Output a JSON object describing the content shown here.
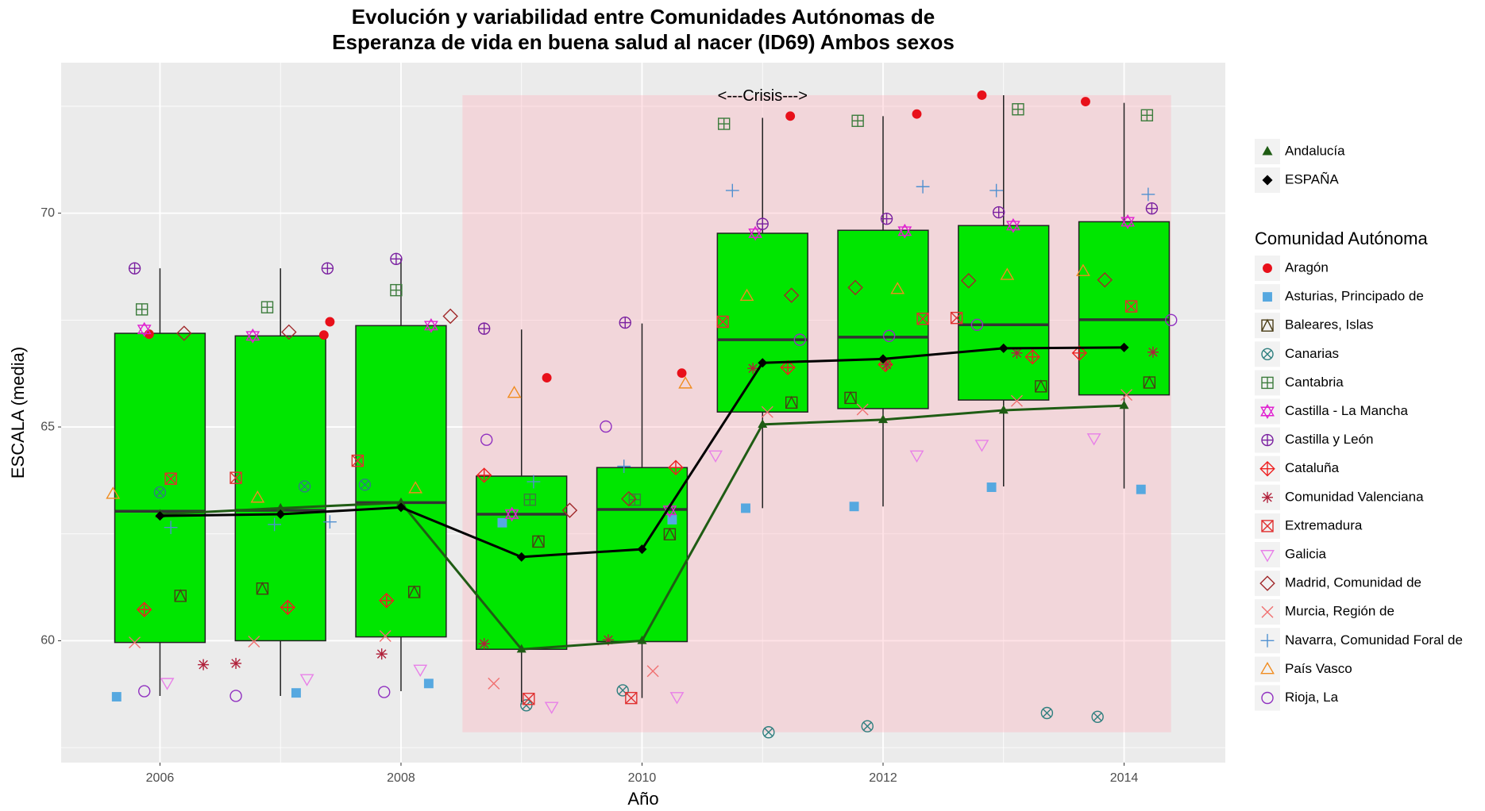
{
  "chart_data": {
    "type": "box",
    "title": [
      "Evolución y variabilidad entre Comunidades Autónomas de",
      "Esperanza de vida en buena salud al nacer (ID69) Ambos sexos"
    ],
    "x_label": "Año",
    "y_label": "ESCALA (media)",
    "xlim": [
      2005.18,
      2014.84
    ],
    "ylim": [
      57.15,
      73.52
    ],
    "xticks": [
      2006,
      2008,
      2010,
      2012,
      2014
    ],
    "yticks": [
      60,
      65,
      70
    ],
    "minor_xticks": [
      2007,
      2009,
      2011,
      2013
    ],
    "minor_yticks": [
      57.5,
      62.5,
      67.5,
      72.5
    ],
    "grid": true,
    "crisis": {
      "label": "<---Crisis--->",
      "xlim": [
        2008.51,
        2014.39
      ],
      "ylim": [
        57.86,
        72.76
      ],
      "label_x": 2011,
      "color": "#f4a6ad"
    },
    "boxes": {
      "color": "#00e600",
      "x": [
        2006,
        2007,
        2008,
        2009,
        2010,
        2011,
        2012,
        2013,
        2014
      ],
      "whisker_low": [
        58.71,
        58.71,
        58.82,
        58.51,
        58.66,
        63.1,
        63.14,
        63.61,
        63.56
      ],
      "q1": [
        59.96,
        60.0,
        60.09,
        59.8,
        59.98,
        65.35,
        65.43,
        65.63,
        65.75
      ],
      "median": [
        63.03,
        63.05,
        63.23,
        62.96,
        63.07,
        67.04,
        67.1,
        67.39,
        67.51
      ],
      "q3": [
        67.19,
        67.13,
        67.37,
        63.85,
        64.05,
        69.53,
        69.6,
        69.71,
        69.8
      ],
      "whisker_high": [
        68.71,
        68.71,
        68.93,
        67.28,
        67.42,
        72.23,
        72.27,
        72.76,
        72.58
      ]
    },
    "lines": [
      {
        "name": "Andalucía",
        "color": "#1f5c14",
        "marker": "triangle-filled",
        "x": [
          2006,
          2007,
          2008,
          2009,
          2010,
          2011,
          2012,
          2013,
          2014
        ],
        "values": [
          62.96,
          63.1,
          63.23,
          59.8,
          60.0,
          65.06,
          65.17,
          65.39,
          65.5
        ]
      },
      {
        "name": "ESPAÑA",
        "color": "#000000",
        "marker": "diamond-filled",
        "x": [
          2006,
          2007,
          2008,
          2009,
          2010,
          2011,
          2012,
          2013,
          2014
        ],
        "values": [
          62.92,
          62.96,
          63.12,
          61.96,
          62.14,
          66.5,
          66.59,
          66.84,
          66.86
        ]
      }
    ],
    "legend_title": "Comunidad Autónoma",
    "series": [
      {
        "name": "Aragón",
        "color": "#e8101a",
        "shape": "circle-filled",
        "x": [
          2005.91,
          2007.36,
          2007.41,
          2009.21,
          2010.33,
          2011.23,
          2012.28,
          2012.82,
          2013.68
        ],
        "values": [
          67.17,
          67.15,
          67.46,
          66.15,
          66.26,
          72.27,
          72.32,
          72.76,
          72.61
        ]
      },
      {
        "name": "Asturias, Principado de",
        "color": "#56a8e0",
        "shape": "square-filled",
        "x": [
          2005.64,
          2007.13,
          2008.23,
          2008.84,
          2010.25,
          2010.86,
          2011.76,
          2012.9,
          2014.14
        ],
        "values": [
          58.69,
          58.78,
          59.0,
          62.76,
          62.83,
          63.1,
          63.14,
          63.59,
          63.54
        ]
      },
      {
        "name": "Baleares, Islas",
        "color": "#4a3d16",
        "shape": "square-triangle",
        "x": [
          2006.17,
          2006.85,
          2008.11,
          2009.14,
          2010.23,
          2011.24,
          2011.73,
          2013.31,
          2014.21
        ],
        "values": [
          61.05,
          61.22,
          61.14,
          62.32,
          62.49,
          65.57,
          65.68,
          65.95,
          66.04
        ]
      },
      {
        "name": "Canarias",
        "color": "#2f7f7f",
        "shape": "circle-x",
        "x": [
          2006.0,
          2007.2,
          2007.7,
          2009.04,
          2009.84,
          2011.05,
          2011.87,
          2013.36,
          2013.78
        ],
        "values": [
          63.47,
          63.61,
          63.65,
          58.49,
          58.84,
          57.86,
          58.0,
          58.31,
          58.22
        ]
      },
      {
        "name": "Cantabria",
        "color": "#3c7c3c",
        "shape": "square-plus",
        "x": [
          2005.85,
          2006.89,
          2007.96,
          2009.07,
          2009.94,
          2010.68,
          2011.79,
          2013.12,
          2014.19
        ],
        "values": [
          67.75,
          67.8,
          68.2,
          63.3,
          63.3,
          72.09,
          72.16,
          72.43,
          72.29
        ]
      },
      {
        "name": "Castilla - La Mancha",
        "color": "#e020d0",
        "shape": "star",
        "x": [
          2005.87,
          2006.77,
          2008.25,
          2008.92,
          2010.23,
          2010.94,
          2012.18,
          2013.08,
          2014.03
        ],
        "values": [
          67.28,
          67.13,
          67.37,
          62.96,
          63.05,
          69.53,
          69.58,
          69.71,
          69.8
        ]
      },
      {
        "name": "Castilla y León",
        "color": "#7a20a0",
        "shape": "circle-plus",
        "x": [
          2005.79,
          2007.39,
          2007.96,
          2008.69,
          2009.86,
          2011.0,
          2012.03,
          2012.96,
          2014.23
        ],
        "values": [
          68.71,
          68.71,
          68.93,
          67.3,
          67.44,
          69.75,
          69.87,
          70.02,
          70.11
        ]
      },
      {
        "name": "Cataluña",
        "color": "#ee2020",
        "shape": "diamond-plus",
        "x": [
          2005.87,
          2007.06,
          2007.88,
          2008.69,
          2010.28,
          2011.21,
          2012.02,
          2013.24,
          2013.63
        ],
        "values": [
          60.73,
          60.78,
          60.94,
          63.87,
          64.05,
          66.39,
          66.46,
          66.64,
          66.73
        ]
      },
      {
        "name": "Comunidad Valenciana",
        "color": "#b0203a",
        "shape": "asterisk",
        "x": [
          2006.36,
          2006.63,
          2007.84,
          2008.69,
          2009.72,
          2010.92,
          2012.03,
          2013.11,
          2014.24
        ],
        "values": [
          59.44,
          59.47,
          59.69,
          59.93,
          60.02,
          66.37,
          66.46,
          66.73,
          66.75
        ]
      },
      {
        "name": "Extremadura",
        "color": "#e03030",
        "shape": "square-x",
        "x": [
          2006.09,
          2006.63,
          2007.64,
          2009.06,
          2009.91,
          2010.67,
          2012.33,
          2012.61,
          2014.06
        ],
        "values": [
          63.79,
          63.81,
          64.21,
          58.64,
          58.66,
          67.46,
          67.53,
          67.55,
          67.82
        ]
      },
      {
        "name": "Galicia",
        "color": "#e880e8",
        "shape": "triangle-down",
        "x": [
          2006.06,
          2007.22,
          2008.16,
          2009.25,
          2010.29,
          2010.61,
          2012.28,
          2012.82,
          2013.75
        ],
        "values": [
          59.02,
          59.11,
          59.33,
          58.46,
          58.69,
          64.34,
          64.34,
          64.59,
          64.74
        ]
      },
      {
        "name": "Madrid, Comunidad de",
        "color": "#a0282a",
        "shape": "diamond",
        "x": [
          2006.2,
          2007.07,
          2008.41,
          2009.4,
          2009.89,
          2011.24,
          2011.77,
          2012.71,
          2013.84
        ],
        "values": [
          67.19,
          67.22,
          67.59,
          63.05,
          63.32,
          68.08,
          68.26,
          68.42,
          68.44
        ]
      },
      {
        "name": "Murcia, Región de",
        "color": "#f07070",
        "shape": "x",
        "x": [
          2005.79,
          2006.78,
          2007.87,
          2008.77,
          2010.09,
          2011.04,
          2011.83,
          2013.11,
          2014.02
        ],
        "values": [
          59.96,
          59.98,
          60.11,
          59.0,
          59.29,
          65.35,
          65.41,
          65.61,
          65.75
        ]
      },
      {
        "name": "Navarra, Comunidad Foral de",
        "color": "#5090d0",
        "shape": "plus",
        "x": [
          2006.09,
          2006.95,
          2007.41,
          2009.1,
          2009.85,
          2010.75,
          2012.33,
          2012.94,
          2014.2
        ],
        "values": [
          62.65,
          62.72,
          62.78,
          63.72,
          64.08,
          70.53,
          70.62,
          70.53,
          70.44
        ]
      },
      {
        "name": "País Vasco",
        "color": "#f08c20",
        "shape": "triangle",
        "x": [
          2005.61,
          2006.81,
          2008.12,
          2008.94,
          2010.36,
          2010.87,
          2012.12,
          2013.03,
          2013.66
        ],
        "values": [
          63.43,
          63.34,
          63.56,
          65.79,
          66.01,
          68.06,
          68.22,
          68.55,
          68.64
        ]
      },
      {
        "name": "Rioja, La",
        "color": "#9030c0",
        "shape": "circle",
        "x": [
          2005.87,
          2006.63,
          2007.86,
          2008.71,
          2009.7,
          2011.31,
          2012.05,
          2012.78,
          2014.39
        ],
        "values": [
          58.82,
          58.71,
          58.8,
          64.7,
          65.01,
          67.04,
          67.13,
          67.39,
          67.5
        ]
      }
    ]
  }
}
